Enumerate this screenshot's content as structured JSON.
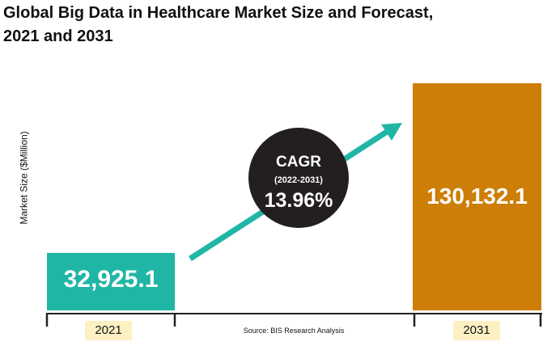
{
  "chart_data": {
    "type": "bar",
    "title": "Global Big Data in Healthcare Market Size and Forecast,\n2021 and 2031",
    "ylabel": "Market Size\n($Million)",
    "categories": [
      "2021",
      "2031"
    ],
    "values": [
      32925.1,
      130132.1
    ],
    "value_labels": [
      "32,925.1",
      "130,132.1"
    ],
    "colors": [
      "#20b6a5",
      "#cd7e07"
    ],
    "annotation": {
      "label": "CAGR",
      "period": "(2022-2031)",
      "value": "13.96%",
      "bubble_color": "#231f20",
      "arrow_color": "#20b6a5"
    },
    "source": "Source: BIS Research Analysis",
    "grid": false,
    "legend": "none"
  }
}
